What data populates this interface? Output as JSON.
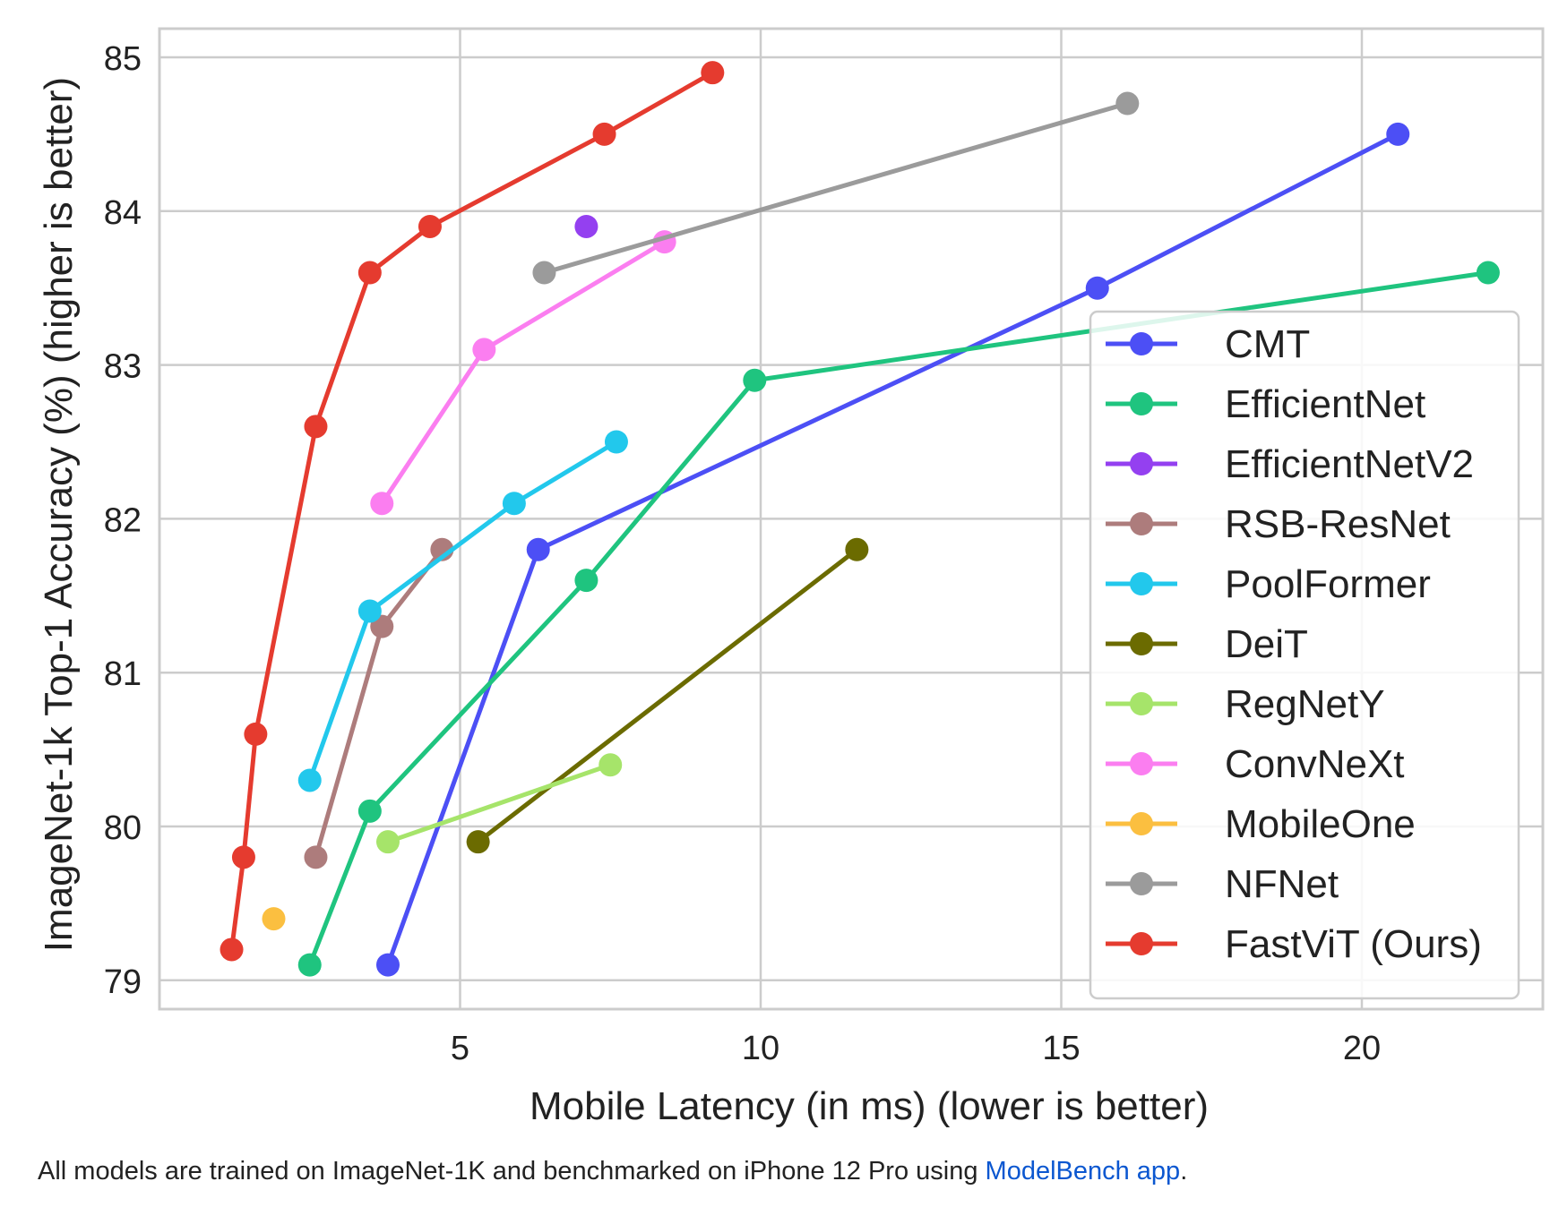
{
  "chart_data": {
    "type": "line",
    "title": "",
    "xlabel": "Mobile Latency (in ms) (lower is better)",
    "ylabel": "ImageNet-1k Top-1 Accuracy (%) (higher is better)",
    "xlim": [
      0,
      23
    ],
    "ylim": [
      78.8,
      85.2
    ],
    "xticks": [
      5,
      10,
      15,
      20
    ],
    "yticks": [
      79,
      80,
      81,
      82,
      83,
      84,
      85
    ],
    "grid": true,
    "legend_position": "lower-right",
    "series": [
      {
        "name": "CMT",
        "color": "#4c4ff5",
        "x": [
          3.8,
          6.3,
          15.6,
          20.6
        ],
        "y": [
          79.1,
          81.8,
          83.5,
          84.5
        ]
      },
      {
        "name": "EfficientNet",
        "color": "#1fc47f",
        "x": [
          2.5,
          3.5,
          7.1,
          9.9,
          22.1
        ],
        "y": [
          79.1,
          80.1,
          81.6,
          82.9,
          83.6
        ]
      },
      {
        "name": "EfficientNetV2",
        "color": "#9440f0",
        "x": [
          7.1
        ],
        "y": [
          83.9
        ]
      },
      {
        "name": "RSB-ResNet",
        "color": "#ad7c7c",
        "x": [
          2.6,
          3.7,
          4.7
        ],
        "y": [
          79.8,
          81.3,
          81.8
        ]
      },
      {
        "name": "PoolFormer",
        "color": "#22c8ec",
        "x": [
          2.5,
          3.5,
          5.9,
          7.6
        ],
        "y": [
          80.3,
          81.4,
          82.1,
          82.5
        ]
      },
      {
        "name": "DeiT",
        "color": "#6b6b00",
        "x": [
          5.3,
          11.6
        ],
        "y": [
          79.9,
          81.8
        ]
      },
      {
        "name": "RegNetY",
        "color": "#a6e46a",
        "x": [
          3.8,
          7.5
        ],
        "y": [
          79.9,
          80.4
        ]
      },
      {
        "name": "ConvNeXt",
        "color": "#fb7ef0",
        "x": [
          3.7,
          5.4,
          8.4
        ],
        "y": [
          82.1,
          83.1,
          83.8
        ]
      },
      {
        "name": "MobileOne",
        "color": "#fbbf40",
        "x": [
          1.9
        ],
        "y": [
          79.4
        ]
      },
      {
        "name": "NFNet",
        "color": "#9b9b9b",
        "x": [
          6.4,
          16.1
        ],
        "y": [
          83.6,
          84.7
        ]
      },
      {
        "name": "FastViT (Ours)",
        "color": "#e53b2f",
        "x": [
          1.2,
          1.4,
          1.6,
          2.6,
          3.5,
          4.5,
          7.4,
          9.2
        ],
        "y": [
          79.2,
          79.8,
          80.6,
          82.6,
          83.6,
          83.9,
          84.5,
          84.9
        ]
      }
    ]
  },
  "caption": {
    "text": "All models are trained on ImageNet-1K and benchmarked on iPhone 12 Pro using ",
    "link_text": "ModelBench app",
    "suffix": "."
  }
}
